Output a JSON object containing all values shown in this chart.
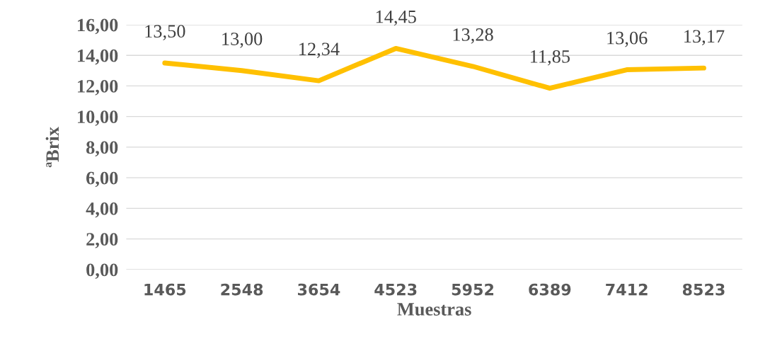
{
  "chart_data": {
    "type": "line",
    "xlabel": "Muestras",
    "ylabel": "ªBrix",
    "categories": [
      "1465",
      "2548",
      "3654",
      "4523",
      "5952",
      "6389",
      "7412",
      "8523"
    ],
    "series": [
      {
        "color": "#ffc000",
        "values": [
          13.5,
          13.0,
          12.34,
          14.45,
          13.28,
          11.85,
          13.06,
          13.17
        ],
        "value_labels": [
          "13,50",
          "13,00",
          "12,34",
          "14,45",
          "13,28",
          "11,85",
          "13,06",
          "13,17"
        ]
      }
    ],
    "ylim": [
      0,
      16
    ],
    "yticks": [
      {
        "value": 0,
        "label": "0,00"
      },
      {
        "value": 2,
        "label": "2,00"
      },
      {
        "value": 4,
        "label": "4,00"
      },
      {
        "value": 6,
        "label": "6,00"
      },
      {
        "value": 8,
        "label": "8,00"
      },
      {
        "value": 10,
        "label": "10,00"
      },
      {
        "value": 12,
        "label": "12,00"
      },
      {
        "value": 14,
        "label": "14,00"
      },
      {
        "value": 16,
        "label": "16,00"
      }
    ],
    "grid": "y",
    "legend": false,
    "marker": "none",
    "line_style": "solid"
  }
}
